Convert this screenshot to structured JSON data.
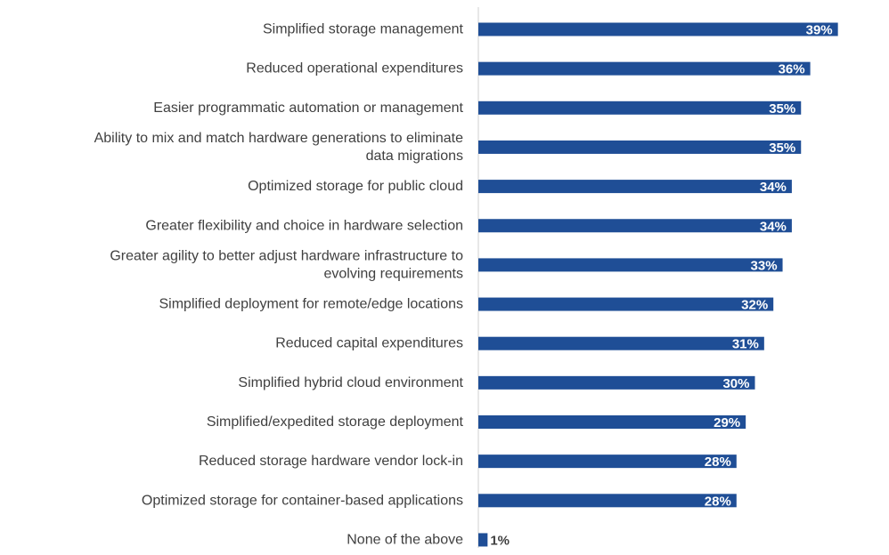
{
  "chart_data": {
    "type": "bar",
    "orientation": "horizontal",
    "categories": [
      [
        "Simplified storage management"
      ],
      [
        "Reduced operational expenditures"
      ],
      [
        "Easier programmatic automation or management"
      ],
      [
        "Ability to mix and match hardware generations to eliminate",
        "data migrations"
      ],
      [
        "Optimized storage for public cloud"
      ],
      [
        "Greater flexibility and choice in hardware selection"
      ],
      [
        "Greater agility to better adjust hardware infrastructure to",
        "evolving requirements"
      ],
      [
        "Simplified deployment for remote/edge locations"
      ],
      [
        "Reduced capital expenditures"
      ],
      [
        "Simplified hybrid cloud environment"
      ],
      [
        "Simplified/expedited storage deployment"
      ],
      [
        "Reduced storage hardware vendor lock-in"
      ],
      [
        "Optimized storage for container-based applications"
      ],
      [
        "None of the above"
      ]
    ],
    "values": [
      39,
      36,
      35,
      35,
      34,
      34,
      33,
      32,
      31,
      30,
      29,
      28,
      28,
      1
    ],
    "value_labels": [
      "39%",
      "36%",
      "35%",
      "35%",
      "34%",
      "34%",
      "33%",
      "32%",
      "31%",
      "30%",
      "29%",
      "28%",
      "28%",
      "1%"
    ],
    "xlim": [
      0,
      44
    ],
    "grid": false,
    "legend": "none",
    "bar_color": "#1F4E96",
    "label_inside_color": "#ffffff",
    "label_outside_color": "#404040",
    "axis_color": "#d0d0d0"
  }
}
